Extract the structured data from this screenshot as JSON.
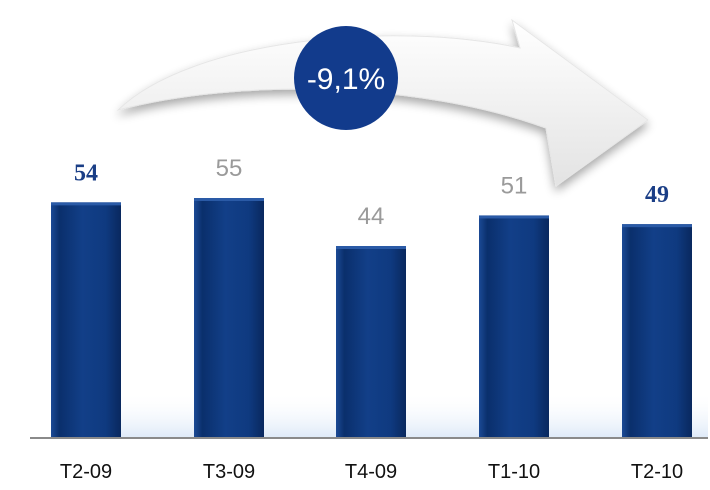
{
  "chart_data": {
    "type": "bar",
    "categories": [
      "T2-09",
      "T3-09",
      "T4-09",
      "T1-10",
      "T2-10"
    ],
    "values": [
      54,
      55,
      44,
      51,
      49
    ],
    "highlighted": [
      true,
      false,
      false,
      false,
      true
    ],
    "title": "",
    "xlabel": "",
    "ylabel": "",
    "ylim": [
      0,
      55
    ],
    "grid": false,
    "change_badge": "-9,1%",
    "colors": {
      "bar": "#0f3a80",
      "highlight_label": "#1a3e86",
      "plain_label": "#9a9a9a",
      "badge": "#123b8c"
    }
  }
}
